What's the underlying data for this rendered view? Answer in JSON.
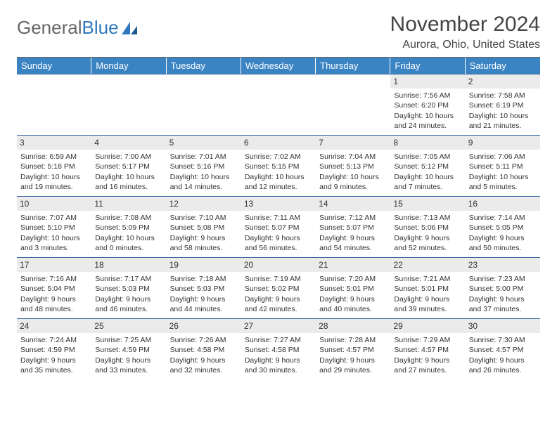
{
  "brand": {
    "text1": "General",
    "text2": "Blue"
  },
  "header": {
    "title": "November 2024",
    "location": "Aurora, Ohio, United States"
  },
  "dow": [
    "Sunday",
    "Monday",
    "Tuesday",
    "Wednesday",
    "Thursday",
    "Friday",
    "Saturday"
  ],
  "colors": {
    "header_bg": "#3b84c4",
    "week_divider": "#3b6aa0",
    "daynum_bg": "#ebebeb",
    "text": "#333333",
    "brand_gray": "#666666",
    "brand_blue": "#2f78bd"
  },
  "weeks": [
    [
      {
        "n": "",
        "empty": true
      },
      {
        "n": "",
        "empty": true
      },
      {
        "n": "",
        "empty": true
      },
      {
        "n": "",
        "empty": true
      },
      {
        "n": "",
        "empty": true
      },
      {
        "n": "1",
        "sunrise": "Sunrise: 7:56 AM",
        "sunset": "Sunset: 6:20 PM",
        "day1": "Daylight: 10 hours",
        "day2": "and 24 minutes."
      },
      {
        "n": "2",
        "sunrise": "Sunrise: 7:58 AM",
        "sunset": "Sunset: 6:19 PM",
        "day1": "Daylight: 10 hours",
        "day2": "and 21 minutes."
      }
    ],
    [
      {
        "n": "3",
        "sunrise": "Sunrise: 6:59 AM",
        "sunset": "Sunset: 5:18 PM",
        "day1": "Daylight: 10 hours",
        "day2": "and 19 minutes."
      },
      {
        "n": "4",
        "sunrise": "Sunrise: 7:00 AM",
        "sunset": "Sunset: 5:17 PM",
        "day1": "Daylight: 10 hours",
        "day2": "and 16 minutes."
      },
      {
        "n": "5",
        "sunrise": "Sunrise: 7:01 AM",
        "sunset": "Sunset: 5:16 PM",
        "day1": "Daylight: 10 hours",
        "day2": "and 14 minutes."
      },
      {
        "n": "6",
        "sunrise": "Sunrise: 7:02 AM",
        "sunset": "Sunset: 5:15 PM",
        "day1": "Daylight: 10 hours",
        "day2": "and 12 minutes."
      },
      {
        "n": "7",
        "sunrise": "Sunrise: 7:04 AM",
        "sunset": "Sunset: 5:13 PM",
        "day1": "Daylight: 10 hours",
        "day2": "and 9 minutes."
      },
      {
        "n": "8",
        "sunrise": "Sunrise: 7:05 AM",
        "sunset": "Sunset: 5:12 PM",
        "day1": "Daylight: 10 hours",
        "day2": "and 7 minutes."
      },
      {
        "n": "9",
        "sunrise": "Sunrise: 7:06 AM",
        "sunset": "Sunset: 5:11 PM",
        "day1": "Daylight: 10 hours",
        "day2": "and 5 minutes."
      }
    ],
    [
      {
        "n": "10",
        "sunrise": "Sunrise: 7:07 AM",
        "sunset": "Sunset: 5:10 PM",
        "day1": "Daylight: 10 hours",
        "day2": "and 3 minutes."
      },
      {
        "n": "11",
        "sunrise": "Sunrise: 7:08 AM",
        "sunset": "Sunset: 5:09 PM",
        "day1": "Daylight: 10 hours",
        "day2": "and 0 minutes."
      },
      {
        "n": "12",
        "sunrise": "Sunrise: 7:10 AM",
        "sunset": "Sunset: 5:08 PM",
        "day1": "Daylight: 9 hours",
        "day2": "and 58 minutes."
      },
      {
        "n": "13",
        "sunrise": "Sunrise: 7:11 AM",
        "sunset": "Sunset: 5:07 PM",
        "day1": "Daylight: 9 hours",
        "day2": "and 56 minutes."
      },
      {
        "n": "14",
        "sunrise": "Sunrise: 7:12 AM",
        "sunset": "Sunset: 5:07 PM",
        "day1": "Daylight: 9 hours",
        "day2": "and 54 minutes."
      },
      {
        "n": "15",
        "sunrise": "Sunrise: 7:13 AM",
        "sunset": "Sunset: 5:06 PM",
        "day1": "Daylight: 9 hours",
        "day2": "and 52 minutes."
      },
      {
        "n": "16",
        "sunrise": "Sunrise: 7:14 AM",
        "sunset": "Sunset: 5:05 PM",
        "day1": "Daylight: 9 hours",
        "day2": "and 50 minutes."
      }
    ],
    [
      {
        "n": "17",
        "sunrise": "Sunrise: 7:16 AM",
        "sunset": "Sunset: 5:04 PM",
        "day1": "Daylight: 9 hours",
        "day2": "and 48 minutes."
      },
      {
        "n": "18",
        "sunrise": "Sunrise: 7:17 AM",
        "sunset": "Sunset: 5:03 PM",
        "day1": "Daylight: 9 hours",
        "day2": "and 46 minutes."
      },
      {
        "n": "19",
        "sunrise": "Sunrise: 7:18 AM",
        "sunset": "Sunset: 5:03 PM",
        "day1": "Daylight: 9 hours",
        "day2": "and 44 minutes."
      },
      {
        "n": "20",
        "sunrise": "Sunrise: 7:19 AM",
        "sunset": "Sunset: 5:02 PM",
        "day1": "Daylight: 9 hours",
        "day2": "and 42 minutes."
      },
      {
        "n": "21",
        "sunrise": "Sunrise: 7:20 AM",
        "sunset": "Sunset: 5:01 PM",
        "day1": "Daylight: 9 hours",
        "day2": "and 40 minutes."
      },
      {
        "n": "22",
        "sunrise": "Sunrise: 7:21 AM",
        "sunset": "Sunset: 5:01 PM",
        "day1": "Daylight: 9 hours",
        "day2": "and 39 minutes."
      },
      {
        "n": "23",
        "sunrise": "Sunrise: 7:23 AM",
        "sunset": "Sunset: 5:00 PM",
        "day1": "Daylight: 9 hours",
        "day2": "and 37 minutes."
      }
    ],
    [
      {
        "n": "24",
        "sunrise": "Sunrise: 7:24 AM",
        "sunset": "Sunset: 4:59 PM",
        "day1": "Daylight: 9 hours",
        "day2": "and 35 minutes."
      },
      {
        "n": "25",
        "sunrise": "Sunrise: 7:25 AM",
        "sunset": "Sunset: 4:59 PM",
        "day1": "Daylight: 9 hours",
        "day2": "and 33 minutes."
      },
      {
        "n": "26",
        "sunrise": "Sunrise: 7:26 AM",
        "sunset": "Sunset: 4:58 PM",
        "day1": "Daylight: 9 hours",
        "day2": "and 32 minutes."
      },
      {
        "n": "27",
        "sunrise": "Sunrise: 7:27 AM",
        "sunset": "Sunset: 4:58 PM",
        "day1": "Daylight: 9 hours",
        "day2": "and 30 minutes."
      },
      {
        "n": "28",
        "sunrise": "Sunrise: 7:28 AM",
        "sunset": "Sunset: 4:57 PM",
        "day1": "Daylight: 9 hours",
        "day2": "and 29 minutes."
      },
      {
        "n": "29",
        "sunrise": "Sunrise: 7:29 AM",
        "sunset": "Sunset: 4:57 PM",
        "day1": "Daylight: 9 hours",
        "day2": "and 27 minutes."
      },
      {
        "n": "30",
        "sunrise": "Sunrise: 7:30 AM",
        "sunset": "Sunset: 4:57 PM",
        "day1": "Daylight: 9 hours",
        "day2": "and 26 minutes."
      }
    ]
  ]
}
